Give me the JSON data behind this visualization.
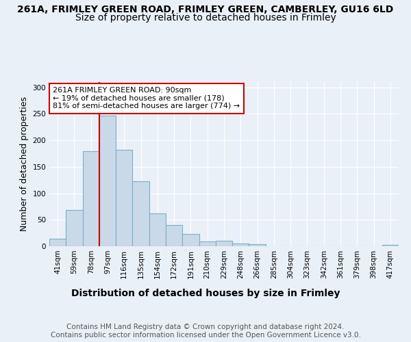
{
  "title1": "261A, FRIMLEY GREEN ROAD, FRIMLEY GREEN, CAMBERLEY, GU16 6LD",
  "title2": "Size of property relative to detached houses in Frimley",
  "xlabel": "Distribution of detached houses by size in Frimley",
  "ylabel": "Number of detached properties",
  "categories": [
    "41sqm",
    "59sqm",
    "78sqm",
    "97sqm",
    "116sqm",
    "135sqm",
    "154sqm",
    "172sqm",
    "191sqm",
    "210sqm",
    "229sqm",
    "248sqm",
    "266sqm",
    "285sqm",
    "304sqm",
    "323sqm",
    "342sqm",
    "361sqm",
    "379sqm",
    "398sqm",
    "417sqm"
  ],
  "values": [
    14,
    68,
    180,
    247,
    182,
    123,
    62,
    40,
    23,
    9,
    10,
    5,
    4,
    0,
    0,
    0,
    0,
    0,
    0,
    0,
    3
  ],
  "bar_color": "#c9d9e8",
  "bar_edge_color": "#7aafc8",
  "vline_x_index": 2,
  "vline_color": "#cc0000",
  "annotation_text": "261A FRIMLEY GREEN ROAD: 90sqm\n← 19% of detached houses are smaller (178)\n81% of semi-detached houses are larger (774) →",
  "annotation_box_color": "#ffffff",
  "annotation_box_edge_color": "#cc0000",
  "ylim": [
    0,
    310
  ],
  "yticks": [
    0,
    50,
    100,
    150,
    200,
    250,
    300
  ],
  "background_color": "#eaf0f8",
  "plot_bg_color": "#eaf0f8",
  "footer_text": "Contains HM Land Registry data © Crown copyright and database right 2024.\nContains public sector information licensed under the Open Government Licence v3.0.",
  "title1_fontsize": 10,
  "title2_fontsize": 10,
  "xlabel_fontsize": 10,
  "ylabel_fontsize": 9,
  "footer_fontsize": 7.5
}
